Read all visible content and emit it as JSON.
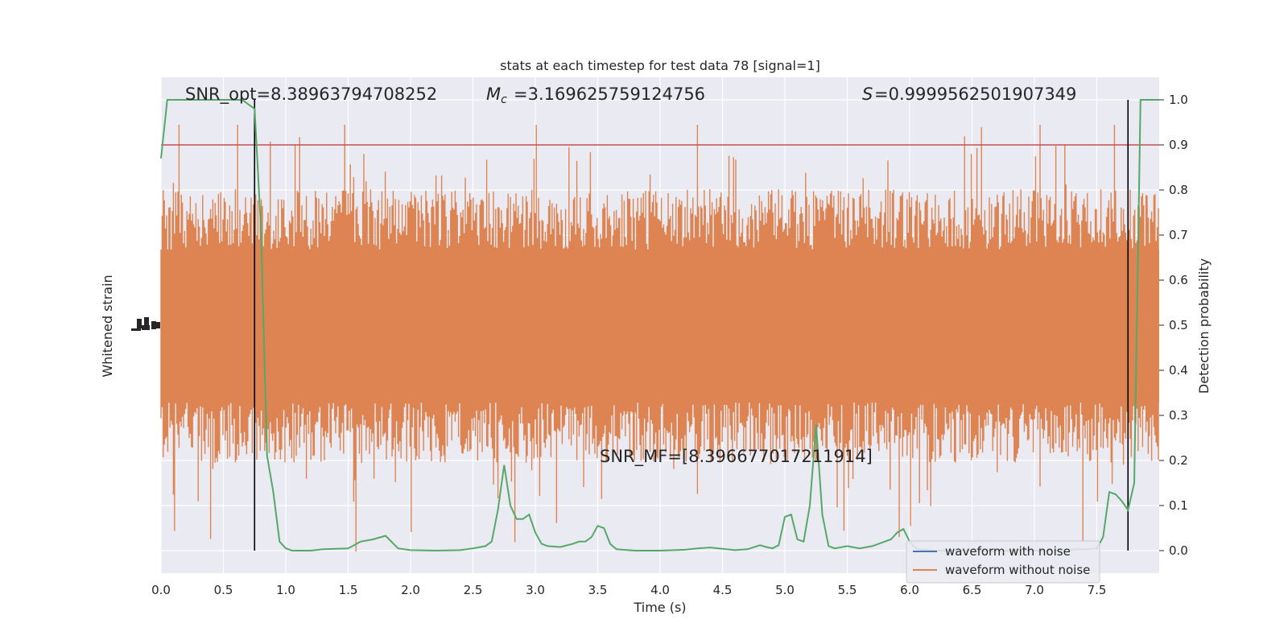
{
  "chart_data": {
    "type": "line",
    "title": "stats at each timestep for test data 78 [signal=1]",
    "xlabel": "Time (s)",
    "ylabel_left": "Whitened strain",
    "ylabel_right": "Detection probability",
    "xlim": [
      0,
      8
    ],
    "ylim_right": [
      -0.05,
      1.05
    ],
    "x_ticks": [
      "0.0",
      "0.5",
      "1.0",
      "1.5",
      "2.0",
      "2.5",
      "3.0",
      "3.5",
      "4.0",
      "4.5",
      "5.0",
      "5.5",
      "6.0",
      "6.5",
      "7.0",
      "7.5"
    ],
    "y_ticks_right": [
      "0.0",
      "0.1",
      "0.2",
      "0.3",
      "0.4",
      "0.5",
      "0.6",
      "0.7",
      "0.8",
      "0.9",
      "1.0"
    ],
    "grid": true,
    "background": "#eaeaf2",
    "annotations": {
      "snr_opt": "SNR_opt=8.38963794708252",
      "mc": "=3.169625759124756",
      "s": "=0.9999562501907349",
      "snr_mf": "SNR_MF=[8.396677017211914]"
    },
    "threshold": {
      "y": 0.9,
      "color": "#c44e52"
    },
    "vertical_markers": [
      0.75,
      7.75
    ],
    "series": [
      {
        "name": "waveform with noise",
        "color": "#4c72b0",
        "role": "strain"
      },
      {
        "name": "waveform without noise",
        "color": "#dd8452",
        "role": "strain"
      },
      {
        "color": "#55a868",
        "role": "probability",
        "x": [
          0.0,
          0.05,
          0.1,
          0.2,
          0.3,
          0.4,
          0.5,
          0.6,
          0.65,
          0.7,
          0.75,
          0.8,
          0.85,
          0.9,
          0.95,
          1.0,
          1.05,
          1.1,
          1.2,
          1.3,
          1.4,
          1.5,
          1.6,
          1.7,
          1.8,
          1.9,
          2.0,
          2.2,
          2.4,
          2.5,
          2.6,
          2.65,
          2.7,
          2.75,
          2.8,
          2.85,
          2.9,
          2.95,
          3.0,
          3.05,
          3.1,
          3.2,
          3.3,
          3.35,
          3.4,
          3.45,
          3.5,
          3.55,
          3.6,
          3.65,
          3.7,
          3.8,
          3.9,
          4.0,
          4.2,
          4.3,
          4.4,
          4.5,
          4.6,
          4.7,
          4.8,
          4.85,
          4.9,
          4.95,
          5.0,
          5.05,
          5.1,
          5.15,
          5.2,
          5.25,
          5.3,
          5.35,
          5.4,
          5.5,
          5.6,
          5.7,
          5.8,
          5.85,
          5.9,
          5.95,
          6.0,
          6.05,
          6.1,
          6.2,
          6.3,
          6.4,
          6.5,
          6.6,
          6.7,
          6.8,
          6.9,
          7.0,
          7.1,
          7.2,
          7.3,
          7.4,
          7.5,
          7.55,
          7.6,
          7.65,
          7.7,
          7.75,
          7.8,
          7.85,
          7.9,
          7.95,
          8.0
        ],
        "values": [
          0.87,
          1.0,
          1.0,
          1.0,
          1.0,
          1.0,
          1.0,
          1.0,
          1.0,
          0.99,
          0.98,
          0.72,
          0.21,
          0.13,
          0.02,
          0.005,
          0.0,
          0.0,
          0.0,
          0.003,
          0.004,
          0.005,
          0.02,
          0.025,
          0.033,
          0.005,
          0.001,
          0.0,
          0.001,
          0.005,
          0.01,
          0.02,
          0.09,
          0.19,
          0.1,
          0.07,
          0.07,
          0.08,
          0.04,
          0.015,
          0.01,
          0.008,
          0.015,
          0.02,
          0.02,
          0.03,
          0.055,
          0.05,
          0.015,
          0.003,
          0.002,
          0.0,
          0.0,
          0.0,
          0.002,
          0.005,
          0.007,
          0.004,
          0.001,
          0.003,
          0.012,
          0.008,
          0.005,
          0.012,
          0.075,
          0.08,
          0.025,
          0.02,
          0.1,
          0.28,
          0.08,
          0.01,
          0.005,
          0.01,
          0.005,
          0.01,
          0.02,
          0.025,
          0.04,
          0.048,
          0.02,
          0.005,
          0.002,
          0.0,
          0.0,
          0.0,
          0.001,
          0.0,
          0.0,
          0.0,
          0.002,
          0.0,
          0.0,
          0.0,
          0.002,
          0.003,
          0.005,
          0.03,
          0.13,
          0.125,
          0.11,
          0.09,
          0.15,
          1.0,
          1.0,
          1.0,
          1.0
        ]
      }
    ],
    "legend_position": "lower-right"
  }
}
